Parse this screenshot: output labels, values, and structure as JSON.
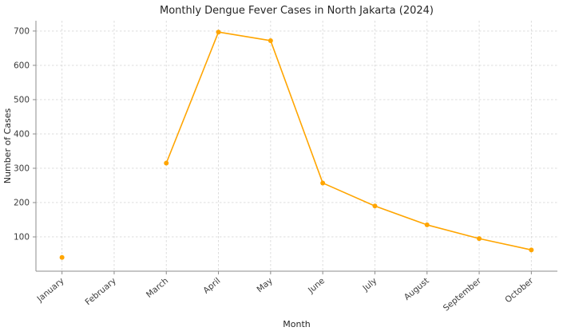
{
  "figure": {
    "background": "#ffffff"
  },
  "chart_data": {
    "type": "line",
    "title": "Monthly Dengue Fever Cases in North Jakarta (2024)",
    "xlabel": "Month",
    "ylabel": "Number of Cases",
    "categories": [
      "January",
      "February",
      "March",
      "April",
      "May",
      "June",
      "July",
      "August",
      "September",
      "October"
    ],
    "values": [
      40,
      null,
      315,
      697,
      672,
      257,
      190,
      135,
      95,
      62
    ],
    "ylim": [
      0,
      730
    ],
    "yticks": [
      100,
      200,
      300,
      400,
      500,
      600,
      700
    ],
    "grid": true,
    "legend": "none",
    "line_color": "#FFA500",
    "marker": "circle",
    "grid_color": "#d8d8d8",
    "axis_color": "#8c8c8c",
    "tick_label_color": "#3b3b3b",
    "label_color": "#262626"
  }
}
